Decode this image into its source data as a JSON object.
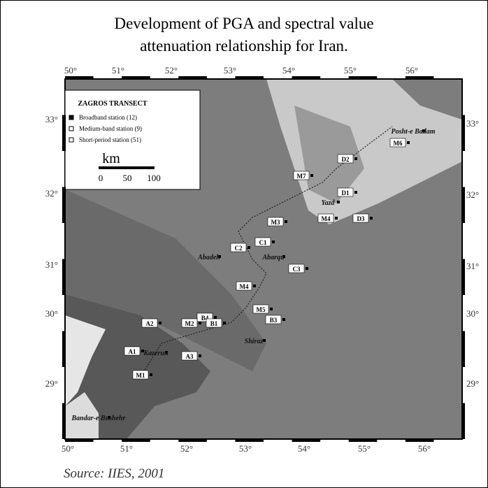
{
  "title": [
    "Development of  PGA and spectral value",
    "attenuation relationship for Iran."
  ],
  "map": {
    "top_labels": [
      "50°",
      "51°",
      "52°",
      "53°",
      "54°",
      "55°",
      "56°"
    ],
    "bottom_labels": [
      "50°",
      "51°",
      "52°",
      "53°",
      "54°",
      "55°",
      "56°"
    ],
    "left_labels": [
      "33°",
      "32°",
      "31°",
      "30°",
      "29°"
    ],
    "right_labels": [
      "33°",
      "32°",
      "31°",
      "30°",
      "29°"
    ],
    "legend": {
      "title": "ZAGROS TRANSECT",
      "items": [
        "Broadband station (12)",
        "Medium-band station (9)",
        "Short-period station (51)"
      ],
      "scale_unit": "km",
      "scale_ticks": [
        "0",
        "50",
        "100"
      ]
    },
    "places": [
      "Posht-e Badam",
      "M6",
      "D2",
      "M7",
      "D1",
      "Yazd",
      "M4",
      "D3",
      "M3",
      "C1",
      "C2",
      "Abadeh",
      "Abarqu",
      "C3",
      "M4",
      "M5",
      "B4",
      "B3",
      "M2",
      "B1",
      "A2",
      "Shiraz",
      "A1",
      "Kazerun",
      "A3",
      "M1",
      "Bandar-e Bushehr"
    ]
  },
  "source": "Source: IIES, 2001"
}
